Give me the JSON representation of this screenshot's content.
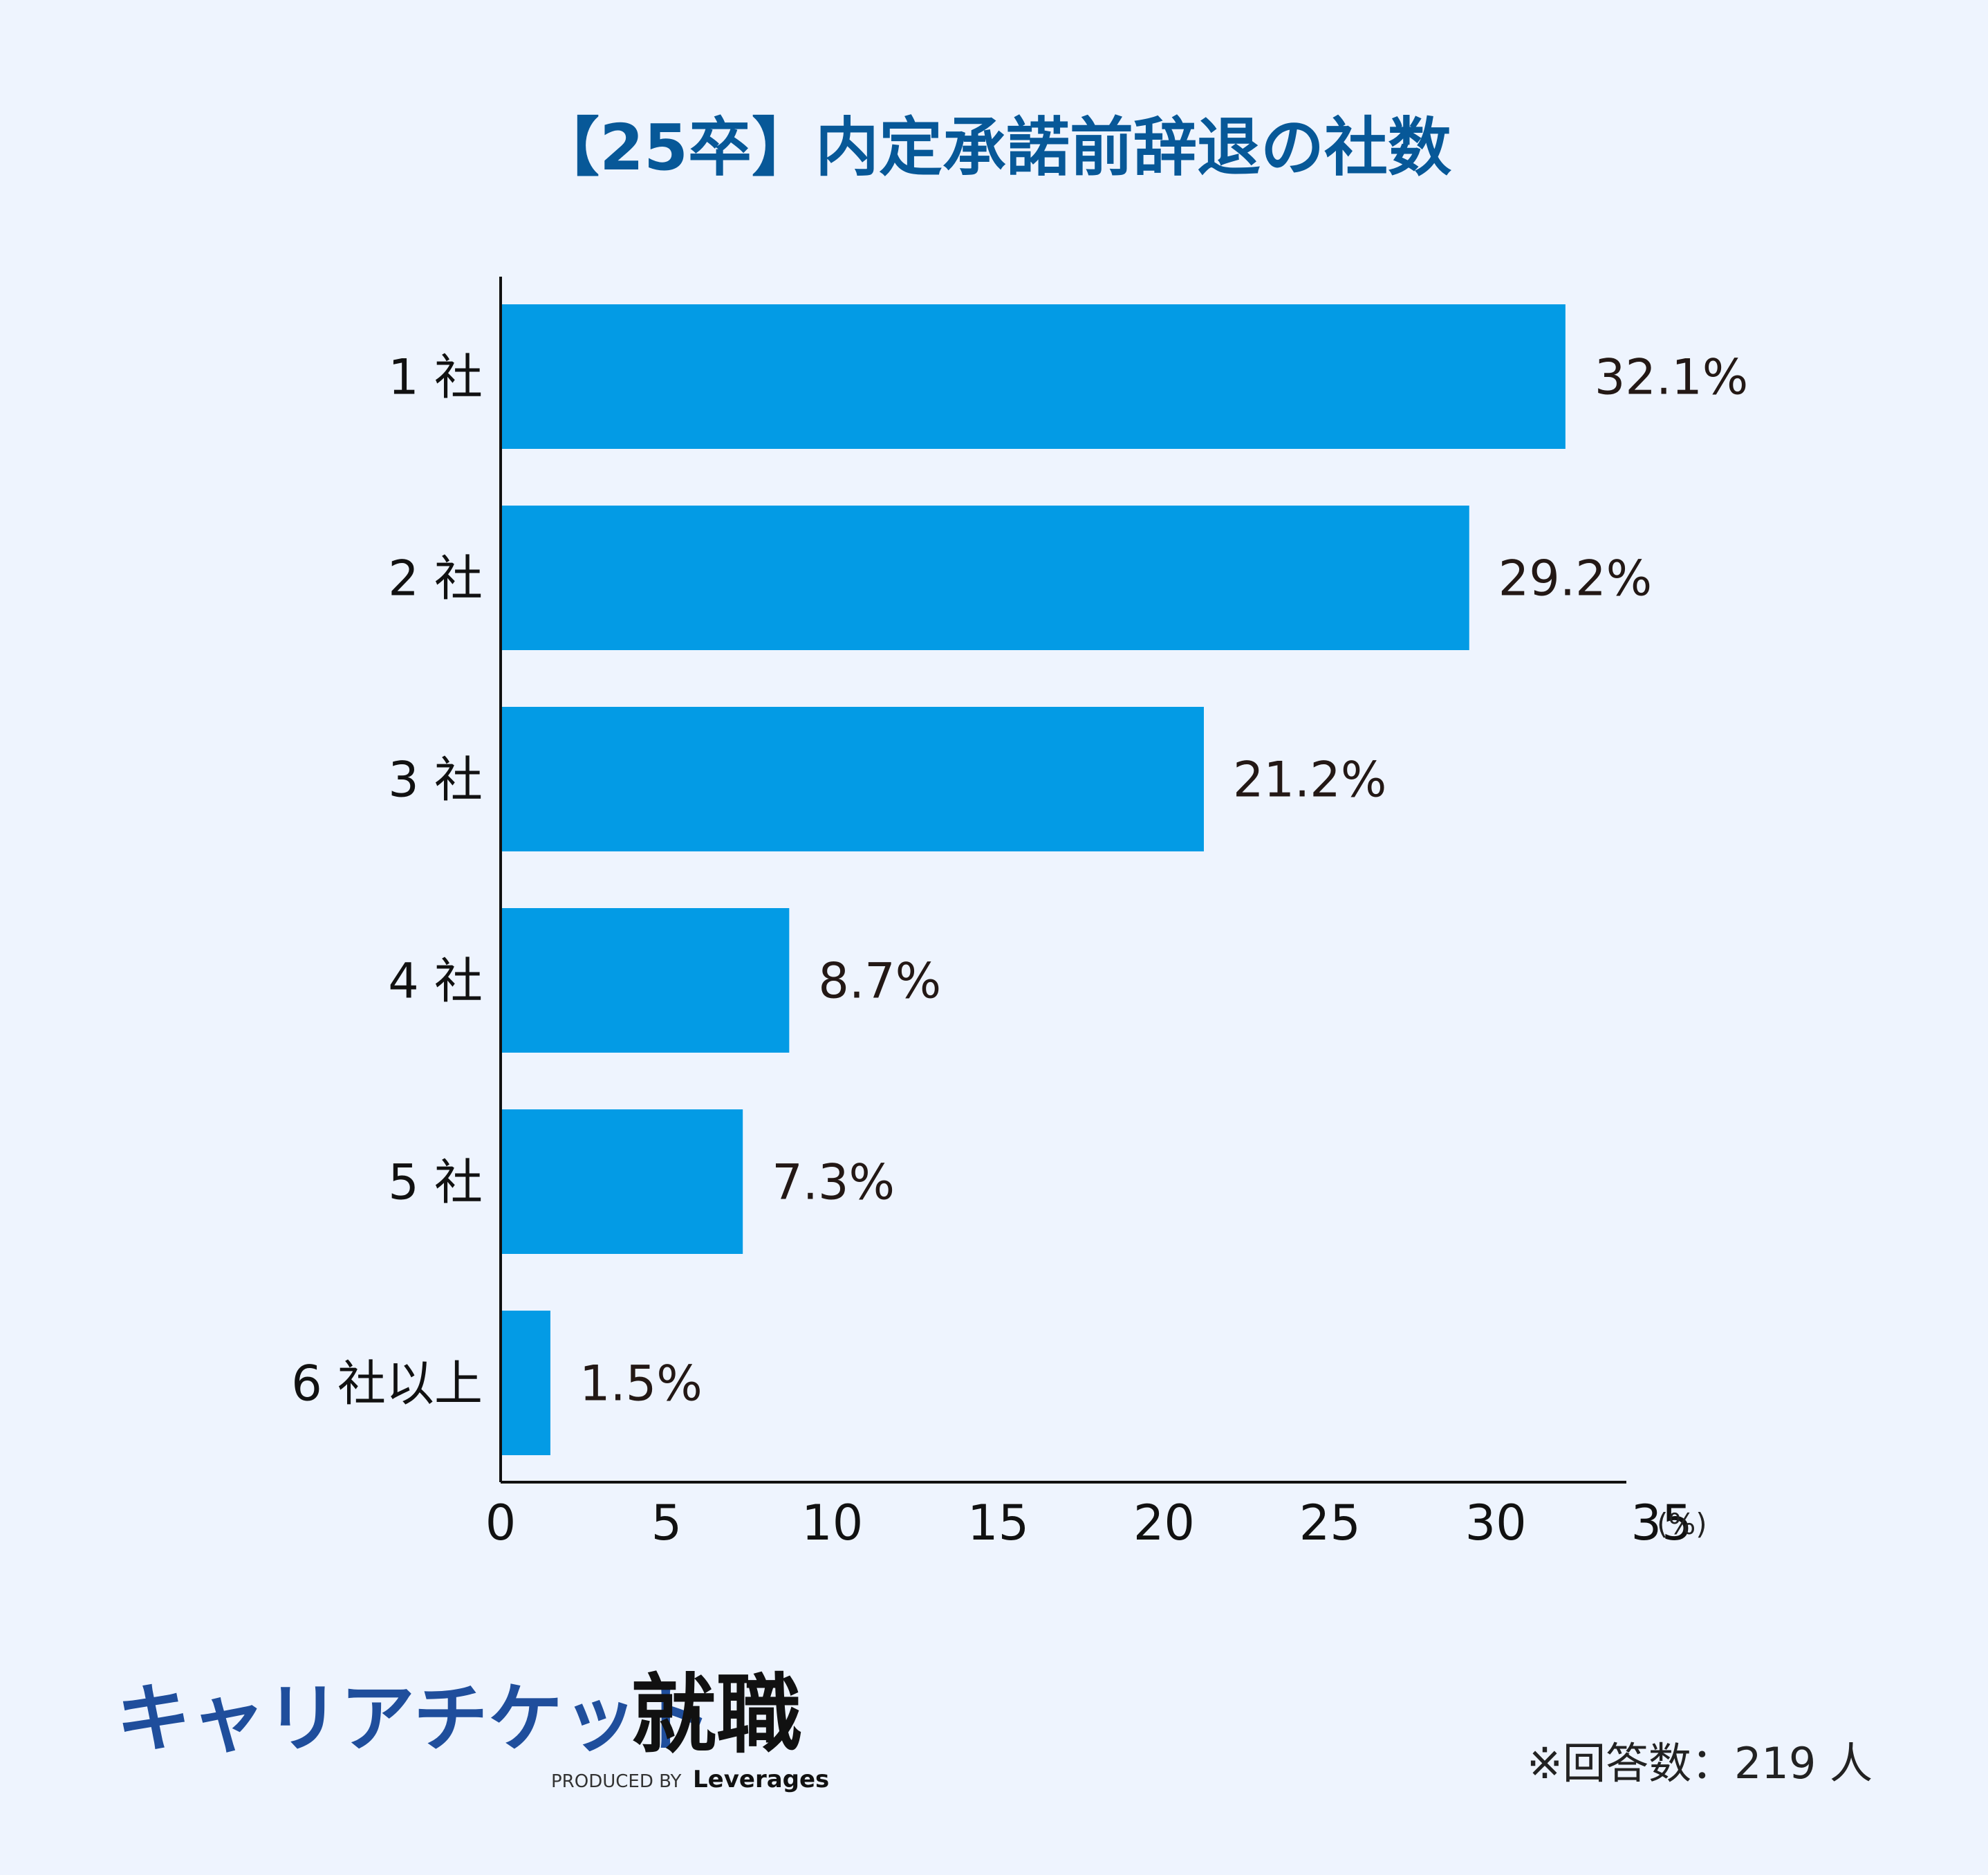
{
  "chart_data": {
    "type": "bar",
    "orientation": "horizontal",
    "title": "【25卒】内定承諾前辞退の社数",
    "categories": [
      "1 社",
      "2 社",
      "3 社",
      "4 社",
      "5 社",
      "6 社以上"
    ],
    "values": [
      32.1,
      29.2,
      21.2,
      8.7,
      7.3,
      1.5
    ],
    "value_labels": [
      "32.1%",
      "29.2%",
      "21.2%",
      "8.7%",
      "7.3%",
      "1.5%"
    ],
    "x_ticks": [
      "0",
      "5",
      "10",
      "15",
      "20",
      "25",
      "30",
      "35"
    ],
    "x_unit": "(%)",
    "xlim": [
      0,
      35
    ],
    "grid": false,
    "bar_color": "#039be5",
    "title_color": "#075898"
  },
  "footer": {
    "brand_name": "キャリアチケット",
    "brand_suffix": "就職",
    "produced_by": "PRODUCED BY",
    "producer": "Leverages",
    "note": "※回答数：219 人",
    "brand_color": "#1f4e9c"
  }
}
